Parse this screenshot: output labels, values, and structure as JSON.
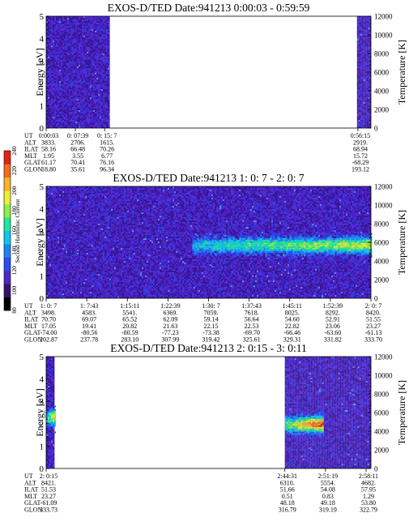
{
  "colorbar": {
    "label": "Second Harmonic Current",
    "ticks": [
      "80",
      "100",
      "120",
      "140",
      "160",
      "180",
      "200",
      "220",
      "240"
    ],
    "colors": [
      "#000000",
      "#3a0f6e",
      "#4a2ac8",
      "#2a4cf0",
      "#1e86f5",
      "#12c6ea",
      "#1ee89a",
      "#8cf046",
      "#ecf032",
      "#f6b428",
      "#f46a1e",
      "#e22414"
    ]
  },
  "chart_data": [
    {
      "type": "heatmap",
      "title": "EXOS-D/TED   Date:941213  0:00:03 - 0:59:59",
      "ylabel": "Energy [eV]",
      "y2label": "Temperature [K]",
      "ylim": [
        0,
        5
      ],
      "y2lim": [
        0,
        12000
      ],
      "yticks": [
        "0",
        "1",
        "2",
        "3",
        "4",
        "5"
      ],
      "y2ticks": [
        "0",
        "2000",
        "4000",
        "6000",
        "8000",
        "10000",
        "12000"
      ],
      "data_intervals": [
        [
          0.0,
          0.196
        ],
        [
          0.957,
          1.0
        ]
      ],
      "features": [],
      "table": {
        "row_labels": [
          "UT",
          "ALT",
          "ILAT",
          "MLT",
          "GLAT",
          "GLON"
        ],
        "columns": [
          {
            "pos": 0.0,
            "values": [
              "0:00:03",
              "3833.",
              "58.16",
              "1.95",
              "61.17",
              "18.80"
            ]
          },
          {
            "pos": 0.09,
            "values": [
              "0: 07:39",
              "2706.",
              "66.48",
              "3.55",
              "70.41",
              "35.61"
            ]
          },
          {
            "pos": 0.18,
            "values": [
              "0: 15: 7",
              "1615.",
              "70.26",
              "6.77",
              "76.16",
              "96.34"
            ]
          },
          {
            "pos": 0.96,
            "values": [
              "0:56:15",
              "2919.",
              "68.94",
              "15.72",
              "-68.29",
              "193.12"
            ]
          }
        ]
      }
    },
    {
      "type": "heatmap",
      "title": "EXOS-D/TED   Date:941213  1: 0: 7 - 2: 0: 7",
      "ylabel": "Energy [eV]",
      "y2label": "Temperature [K]",
      "ylim": [
        0,
        5
      ],
      "y2lim": [
        0,
        12000
      ],
      "yticks": [
        "0",
        "1",
        "2",
        "3",
        "4",
        "5"
      ],
      "y2ticks": [
        "0",
        "2000",
        "4000",
        "6000",
        "8000",
        "10000",
        "12000"
      ],
      "data_intervals": [
        [
          0.0,
          1.0
        ]
      ],
      "features": [
        {
          "x0": 0.45,
          "x1": 1.0,
          "energy": 2.4,
          "intensity": 190
        }
      ],
      "table": {
        "row_labels": [
          "UT",
          "ALT",
          "ILAT",
          "MLT",
          "GLAT",
          "GLON"
        ],
        "columns": [
          {
            "pos": 0.0,
            "values": [
              "1: 0: 7",
              "3498.",
              "70.70",
              "17.05",
              "-74.00",
              "202.87"
            ]
          },
          {
            "pos": 0.125,
            "values": [
              "1: 7:43",
              "4583.",
              "69.07",
              "19.41",
              "-80.56",
              "237.78"
            ]
          },
          {
            "pos": 0.25,
            "values": [
              "1:15:11",
              "5541.",
              "65.52",
              "20.82",
              "-80.59",
              "283.10"
            ]
          },
          {
            "pos": 0.375,
            "values": [
              "1:22:39",
              "6369.",
              "62.09",
              "21.63",
              "-77.23",
              "307.99"
            ]
          },
          {
            "pos": 0.5,
            "values": [
              "1:30: 7",
              "7059.",
              "59.14",
              "22.15",
              "-73.38",
              "319.42"
            ]
          },
          {
            "pos": 0.625,
            "values": [
              "1:37:43",
              "7618.",
              "56.64",
              "22.53",
              "-69.70",
              "325.61"
            ]
          },
          {
            "pos": 0.75,
            "values": [
              "1:45:11",
              "8025.",
              "54.60",
              "22.82",
              "-66.46",
              "329.31"
            ]
          },
          {
            "pos": 0.875,
            "values": [
              "1:52:39",
              "8292.",
              "52.91",
              "23.06",
              "-63.60",
              "331.82"
            ]
          },
          {
            "pos": 1.0,
            "values": [
              "2: 0: 7",
              "8420.",
              "51.55",
              "23.27",
              "-61.13",
              "333.70"
            ]
          }
        ]
      }
    },
    {
      "type": "heatmap",
      "title": "EXOS-D/TED   Date:941213  2: 0:15 - 3: 0:11",
      "ylabel": "Energy [eV]",
      "y2label": "Temperature [K]",
      "ylim": [
        0,
        5
      ],
      "y2lim": [
        0,
        12000
      ],
      "yticks": [
        "0",
        "1",
        "2",
        "3",
        "4",
        "5"
      ],
      "y2ticks": [
        "0",
        "2000",
        "4000",
        "6000",
        "8000",
        "10000",
        "12000"
      ],
      "data_intervals": [
        [
          0.0,
          0.026
        ],
        [
          0.735,
          1.0
        ]
      ],
      "features": [
        {
          "x0": 0.0,
          "x1": 0.026,
          "energy": 2.3,
          "intensity": 200
        },
        {
          "x0": 0.735,
          "x1": 0.85,
          "energy": 2.0,
          "intensity": 225
        }
      ],
      "table": {
        "row_labels": [
          "UT",
          "ALT",
          "ILAT",
          "MLT",
          "GLAT",
          "GLON"
        ],
        "columns": [
          {
            "pos": 0.0,
            "values": [
              "2: 0:15",
              "8421.",
              "51.53",
              "23.27",
              "-61.09",
              "333.73"
            ]
          },
          {
            "pos": 0.735,
            "values": [
              "2:44:31",
              "6310.",
              "51.66",
              "0.51",
              "48.18",
              "316.79"
            ]
          },
          {
            "pos": 0.86,
            "values": [
              "2:51:19",
              "5554.",
              "54.08",
              "0.83",
              "49.18",
              "319.19"
            ]
          },
          {
            "pos": 0.985,
            "values": [
              "2:58:11",
              "4682.",
              "57.95",
              "1.29",
              "53.80",
              "322.79"
            ]
          }
        ]
      }
    }
  ]
}
